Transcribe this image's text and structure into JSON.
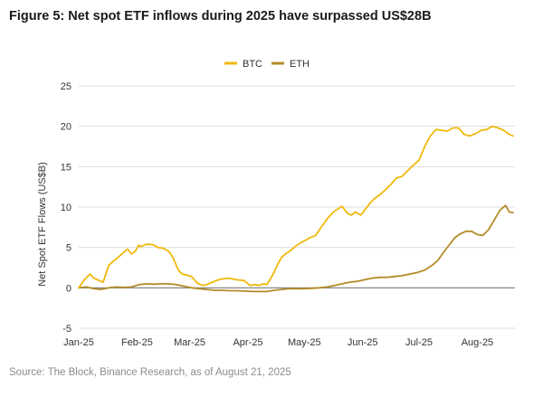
{
  "title": "Figure 5: Net spot ETF inflows during 2025 have surpassed US$28B",
  "source": "Source: The Block, Binance Research, as of August 21, 2025",
  "chart_data": {
    "type": "line",
    "ylabel": "Net Spot ETF Flows (US$B)",
    "xlabel": "",
    "ylim": [
      -5,
      25
    ],
    "y_ticks": [
      -5,
      0,
      5,
      10,
      15,
      20,
      25
    ],
    "x_ticks": [
      "Jan-25",
      "Feb-25",
      "Mar-25",
      "Apr-25",
      "May-25",
      "Jun-25",
      "Jul-25",
      "Aug-25"
    ],
    "x_tick_positions": [
      0,
      31,
      59,
      90,
      120,
      151,
      181,
      212
    ],
    "x_range": [
      0,
      232
    ],
    "grid": "horizontal",
    "legend": "top-center",
    "zero_line_color": "#7a7a7a",
    "series": [
      {
        "name": "BTC",
        "color": "#f0b90b",
        "x": [
          0,
          3,
          6,
          8,
          10,
          13,
          16,
          18,
          20,
          23,
          26,
          28,
          30,
          32,
          33,
          36,
          38,
          40,
          42,
          45,
          48,
          50,
          53,
          55,
          57,
          60,
          63,
          66,
          68,
          70,
          73,
          76,
          80,
          84,
          88,
          91,
          94,
          96,
          98,
          100,
          103,
          106,
          108,
          110,
          112,
          115,
          118,
          120,
          123,
          126,
          129,
          132,
          135,
          138,
          140,
          143,
          145,
          147,
          150,
          152,
          155,
          157,
          160,
          163,
          166,
          169,
          172,
          175,
          178,
          181,
          184,
          187,
          190,
          193,
          196,
          199,
          202,
          205,
          208,
          210,
          212,
          214,
          217,
          220,
          223,
          226,
          229,
          231
        ],
        "values": [
          0,
          1,
          1.7,
          1.2,
          1.0,
          0.7,
          2.8,
          3.2,
          3.6,
          4.2,
          4.8,
          4.2,
          4.5,
          5.3,
          5.1,
          5.4,
          5.4,
          5.3,
          5.0,
          4.9,
          4.5,
          3.8,
          2.2,
          1.7,
          1.6,
          1.4,
          0.6,
          0.3,
          0.4,
          0.6,
          0.9,
          1.1,
          1.2,
          1.0,
          0.9,
          0.3,
          0.4,
          0.3,
          0.5,
          0.4,
          1.5,
          3.0,
          3.8,
          4.2,
          4.5,
          5.1,
          5.6,
          5.8,
          6.2,
          6.5,
          7.5,
          8.5,
          9.3,
          9.8,
          10.1,
          9.2,
          9.0,
          9.4,
          9.0,
          9.6,
          10.5,
          11.0,
          11.5,
          12.1,
          12.8,
          13.6,
          13.8,
          14.5,
          15.2,
          15.8,
          17.5,
          18.8,
          19.6,
          19.5,
          19.4,
          19.8,
          19.8,
          19.0,
          18.8,
          19.0,
          19.2,
          19.5,
          19.6,
          20.0,
          19.8,
          19.5,
          19.0,
          18.8
        ]
      },
      {
        "name": "ETH",
        "color": "#b38b28",
        "x": [
          0,
          4,
          8,
          12,
          16,
          20,
          24,
          28,
          32,
          36,
          40,
          44,
          48,
          52,
          56,
          60,
          64,
          68,
          72,
          76,
          80,
          84,
          88,
          92,
          96,
          100,
          104,
          108,
          112,
          116,
          120,
          124,
          128,
          132,
          136,
          140,
          144,
          148,
          152,
          156,
          160,
          164,
          168,
          172,
          176,
          180,
          184,
          188,
          191,
          194,
          197,
          200,
          203,
          206,
          209,
          212,
          215,
          218,
          221,
          224,
          227,
          229,
          231
        ],
        "values": [
          0,
          0.1,
          -0.1,
          -0.2,
          0.0,
          0.1,
          0.05,
          0.1,
          0.4,
          0.5,
          0.45,
          0.5,
          0.5,
          0.4,
          0.2,
          0.0,
          -0.1,
          -0.2,
          -0.3,
          -0.3,
          -0.35,
          -0.35,
          -0.4,
          -0.45,
          -0.45,
          -0.45,
          -0.3,
          -0.2,
          -0.1,
          -0.1,
          -0.1,
          -0.05,
          0.0,
          0.1,
          0.3,
          0.5,
          0.7,
          0.8,
          1.0,
          1.2,
          1.3,
          1.3,
          1.4,
          1.5,
          1.7,
          1.9,
          2.2,
          2.8,
          3.4,
          4.4,
          5.3,
          6.2,
          6.7,
          7.0,
          7.0,
          6.6,
          6.5,
          7.2,
          8.4,
          9.6,
          10.2,
          9.4,
          9.3
        ]
      }
    ]
  }
}
